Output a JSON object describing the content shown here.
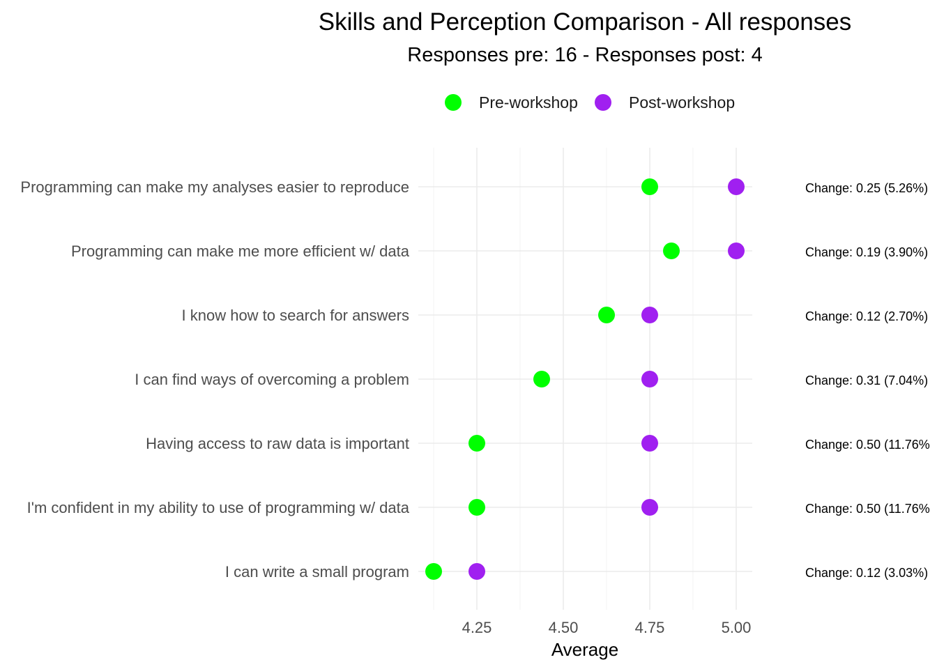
{
  "chart_data": {
    "type": "scatter",
    "title": "Skills and Perception Comparison - All responses",
    "subtitle": "Responses pre: 16 - Responses post: 4",
    "xlabel": "Average",
    "ylabel": "",
    "xlim": [
      4.125,
      5.0
    ],
    "x_ticks": [
      "4.25",
      "4.50",
      "4.75",
      "5.00"
    ],
    "x_tick_values": [
      4.25,
      4.5,
      4.75,
      5.0
    ],
    "grid": true,
    "legend_position": "top",
    "categories": [
      "Programming can make my analyses easier to reproduce",
      "Programming can make me more efficient w/ data",
      "I know how to search for answers",
      "I can find ways of overcoming a problem",
      "Having access to raw data is important",
      "I'm confident in my ability to use of programming w/ data",
      "I can write a small program"
    ],
    "series": [
      {
        "name": "Pre-workshop",
        "color": "#00ff00",
        "values": [
          4.75,
          4.8125,
          4.625,
          4.4375,
          4.25,
          4.25,
          4.125
        ]
      },
      {
        "name": "Post-workshop",
        "color": "#a020f0",
        "values": [
          5.0,
          5.0,
          4.75,
          4.75,
          4.75,
          4.75,
          4.25
        ]
      }
    ],
    "annotations": [
      "Change: 0.25 (5.26%)",
      "Change: 0.19 (3.90%)",
      "Change: 0.12 (2.70%)",
      "Change: 0.31 (7.04%)",
      "Change: 0.50 (11.76%",
      "Change: 0.50 (11.76%",
      "Change: 0.12 (3.03%)"
    ]
  }
}
